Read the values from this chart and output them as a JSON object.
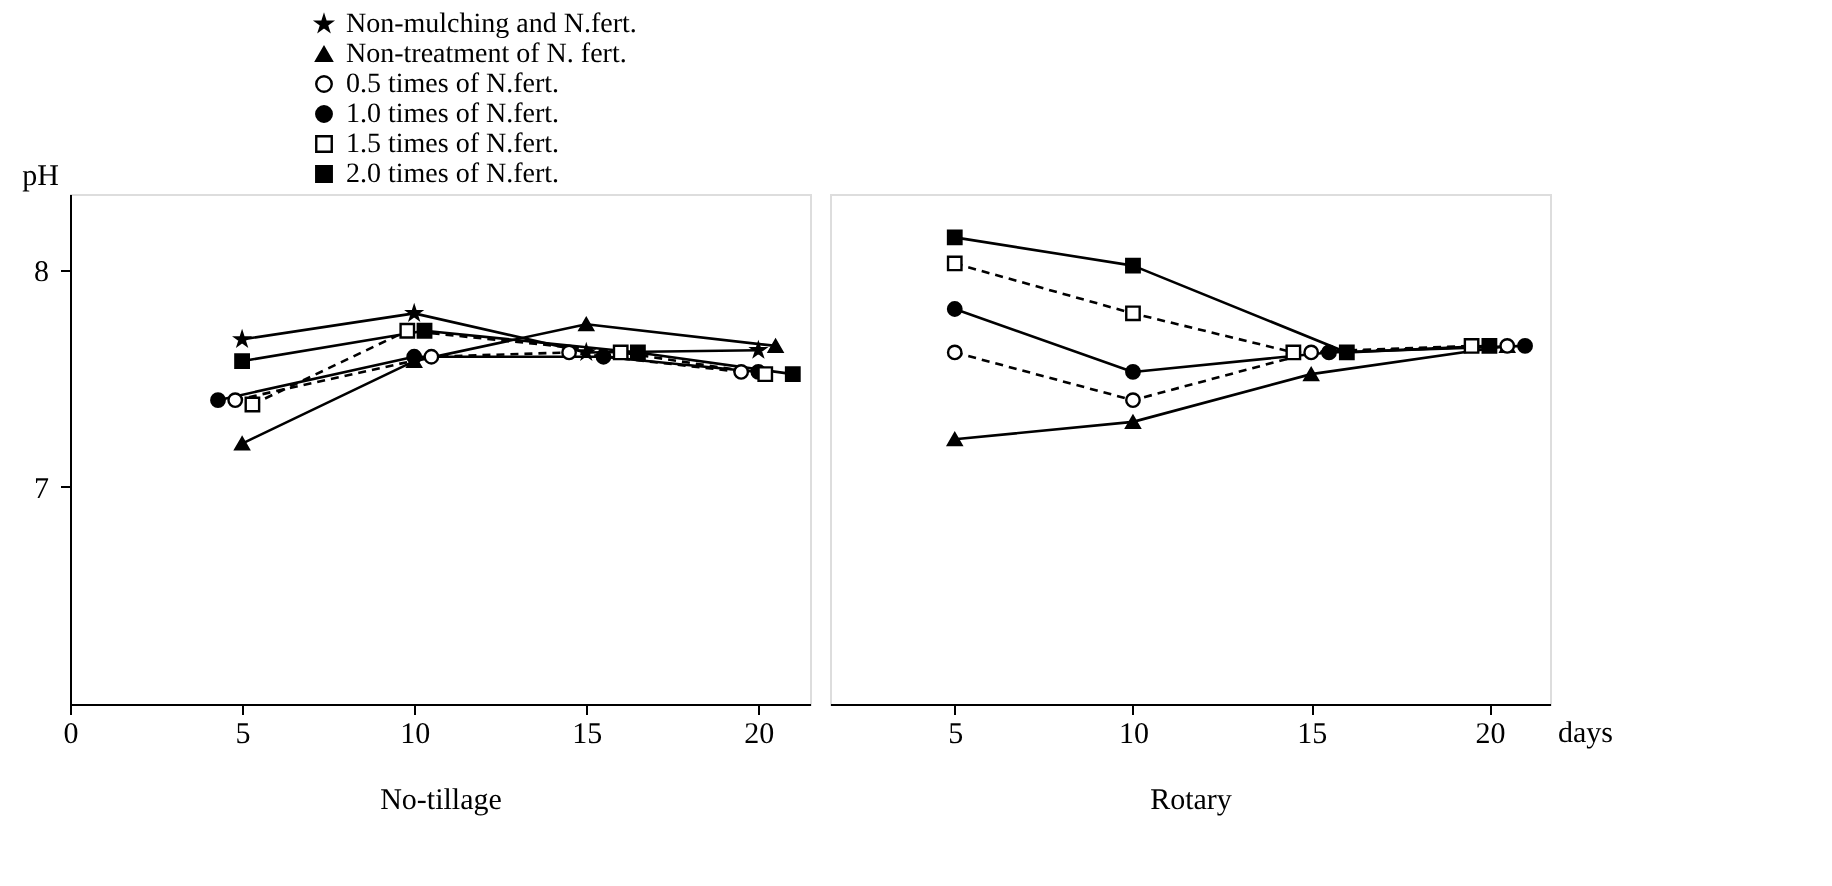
{
  "chart_data": [
    {
      "type": "line",
      "xlabel": "No-tillage",
      "ylabel": "pH",
      "xlim": [
        0,
        21.5
      ],
      "xticks": [
        0,
        5,
        10,
        15,
        20
      ],
      "ylim": [
        6,
        8.35
      ],
      "yticks": [
        7,
        8
      ],
      "grid": false,
      "legend": "top",
      "series": [
        {
          "name": "Non-mulching and N.fert.",
          "color": "#000000",
          "marker": "star",
          "line_style": "solid",
          "x": [
            5,
            10,
            15,
            20
          ],
          "values": [
            7.68,
            7.8,
            7.62,
            7.63
          ]
        },
        {
          "name": "Non-treatment of N. fert.",
          "color": "#000000",
          "marker": "triangle",
          "line_style": "solid",
          "x": [
            5,
            10,
            15,
            20.5
          ],
          "values": [
            7.2,
            7.58,
            7.75,
            7.65
          ]
        },
        {
          "name": "0.5 times of N.fert.",
          "color": "#ffffff",
          "marker": "circle",
          "line_style": "dashed",
          "x": [
            4.8,
            10.5,
            14.5,
            19.5
          ],
          "values": [
            7.4,
            7.6,
            7.62,
            7.53
          ]
        },
        {
          "name": "1.0 times of N.fert.",
          "color": "#000000",
          "marker": "circle",
          "line_style": "solid",
          "x": [
            4.3,
            10,
            15.5,
            20
          ],
          "values": [
            7.4,
            7.6,
            7.6,
            7.53
          ]
        },
        {
          "name": "1.5 times of N.fert.",
          "color": "#ffffff",
          "marker": "square",
          "line_style": "dashed",
          "x": [
            5.3,
            9.8,
            16,
            20.2
          ],
          "values": [
            7.38,
            7.72,
            7.62,
            7.52
          ]
        },
        {
          "name": "2.0 times of N.fert.",
          "color": "#000000",
          "marker": "square",
          "line_style": "solid",
          "x": [
            5,
            10.3,
            16.5,
            21
          ],
          "values": [
            7.58,
            7.72,
            7.62,
            7.52
          ]
        }
      ]
    },
    {
      "type": "line",
      "xlabel": "Rotary",
      "xlim": [
        1.5,
        21.7
      ],
      "xticks": [
        5,
        10,
        15,
        20
      ],
      "ylim": [
        6,
        8.35
      ],
      "tick_labels": "x",
      "grid": false,
      "annotations": [
        "days"
      ],
      "series": [
        {
          "color": "#000000",
          "marker": "triangle",
          "line_style": "solid",
          "x": [
            5,
            10,
            15,
            20.5
          ],
          "values": [
            7.22,
            7.3,
            7.52,
            7.65
          ]
        },
        {
          "color": "#ffffff",
          "marker": "circle",
          "line_style": "dashed",
          "x": [
            5,
            10,
            15,
            20.5
          ],
          "values": [
            7.62,
            7.4,
            7.62,
            7.65
          ]
        },
        {
          "color": "#000000",
          "marker": "circle",
          "line_style": "solid",
          "x": [
            5,
            10,
            15.5,
            21
          ],
          "values": [
            7.82,
            7.53,
            7.62,
            7.65
          ]
        },
        {
          "color": "#ffffff",
          "marker": "square",
          "line_style": "dashed",
          "x": [
            5,
            10,
            14.5,
            19.5
          ],
          "values": [
            8.03,
            7.8,
            7.62,
            7.65
          ]
        },
        {
          "color": "#000000",
          "marker": "square",
          "line_style": "solid",
          "x": [
            5,
            10,
            16,
            20
          ],
          "values": [
            8.15,
            8.02,
            7.62,
            7.65
          ]
        }
      ]
    }
  ]
}
